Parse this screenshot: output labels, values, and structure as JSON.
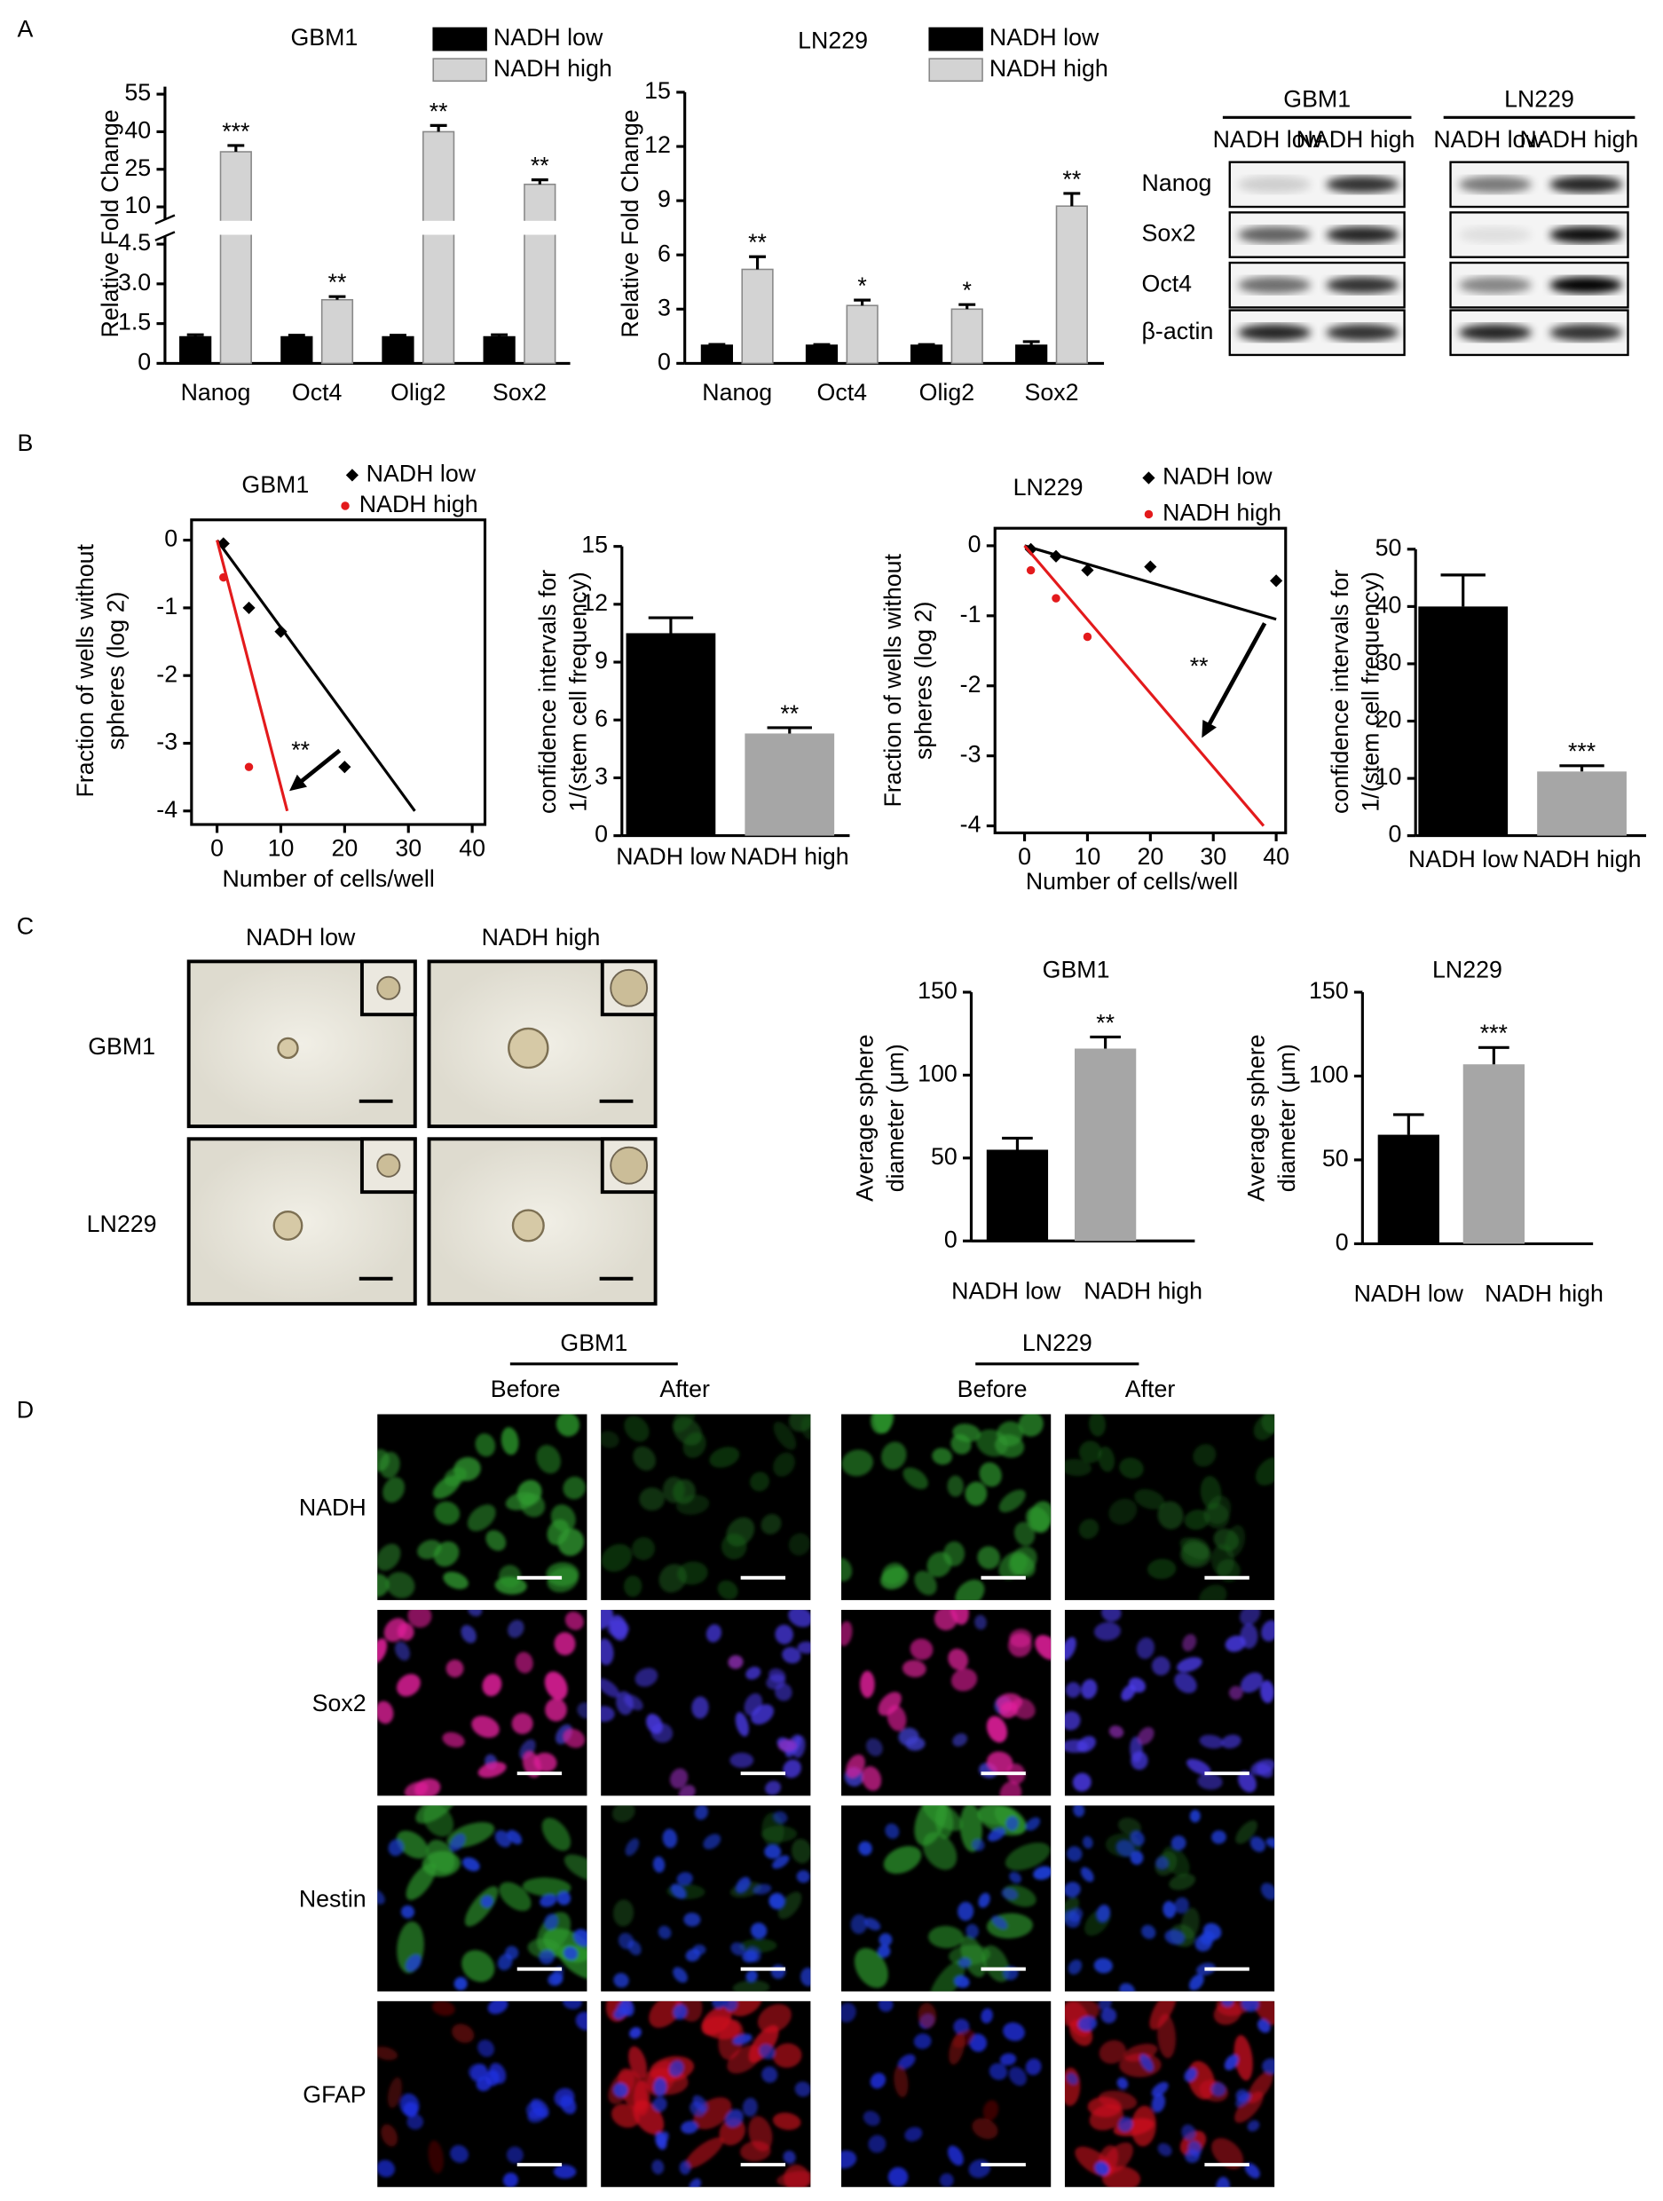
{
  "panel_labels": [
    "A",
    "B",
    "C",
    "D"
  ],
  "chart_data": [
    {
      "type": "bar",
      "title": "GBM1",
      "y_label": "Relative Fold Change",
      "categories": [
        "Nanog",
        "Oct4",
        "Olig2",
        "Sox2"
      ],
      "series": [
        {
          "name": "NADH low",
          "color": "#000000",
          "values": [
            1,
            1,
            1,
            1
          ],
          "errors": [
            0.08,
            0.06,
            0.06,
            0.08
          ]
        },
        {
          "name": "NADH high",
          "color": "#d3d3d3",
          "values": [
            32,
            2.4,
            40,
            19
          ],
          "errors": [
            2.5,
            0.12,
            2.5,
            1.8
          ],
          "annotations": [
            "***",
            "**",
            "**",
            "**"
          ]
        }
      ],
      "axis_segments": [
        {
          "ylim": [
            0,
            4.8
          ],
          "yticks": [
            0,
            1.5,
            {
              "value": 3,
              "label": "3.0"
            },
            4.5
          ]
        },
        {
          "ylim": [
            5,
            58
          ],
          "yticks": [
            10,
            25,
            40,
            55
          ]
        }
      ]
    },
    {
      "type": "bar",
      "title": "LN229",
      "y_label": "Relative Fold Change",
      "categories": [
        "Nanog",
        "Oct4",
        "Olig2",
        "Sox2"
      ],
      "series": [
        {
          "name": "NADH low",
          "color": "#000000",
          "values": [
            1,
            1,
            1,
            1
          ],
          "errors": [
            0.05,
            0.04,
            0.04,
            0.2
          ]
        },
        {
          "name": "NADH high",
          "color": "#d3d3d3",
          "values": [
            5.2,
            3.2,
            3.0,
            8.7
          ],
          "errors": [
            0.7,
            0.3,
            0.25,
            0.7
          ],
          "annotations": [
            "**",
            "*",
            "*",
            "**"
          ]
        }
      ],
      "ylim": [
        0,
        15
      ],
      "yticks": [
        0,
        3,
        6,
        9,
        12,
        15
      ]
    },
    {
      "type": "scatter",
      "title": "GBM1",
      "x_label": "Number of cells/well",
      "y_label": [
        "Fraction of wells without",
        "spheres (log 2)"
      ],
      "xlim": [
        -4,
        42
      ],
      "xticks": [
        0,
        10,
        20,
        30,
        40
      ],
      "ylim": [
        -4.2,
        0.3
      ],
      "yticks": [
        0,
        -1,
        -2,
        -3,
        -4
      ],
      "series": [
        {
          "name": "NADH low",
          "color": "#000000",
          "marker": "diamond",
          "x": [
            1,
            5,
            10,
            20
          ],
          "y": [
            -0.05,
            -1.0,
            -1.35,
            -3.35
          ],
          "fit_x": [
            0,
            31
          ],
          "fit_y": [
            0,
            -4
          ]
        },
        {
          "name": "NADH high",
          "color": "#e31a1c",
          "marker": "circle",
          "x": [
            1,
            5
          ],
          "y": [
            -0.55,
            -3.35
          ],
          "fit_x": [
            0,
            11
          ],
          "fit_y": [
            0,
            -4
          ]
        }
      ],
      "annotation": "**"
    },
    {
      "type": "bar",
      "y_label": [
        "confidence intervals for",
        "1/(stem cell frequency)"
      ],
      "categories": [
        "NADH low",
        "NADH high"
      ],
      "values": [
        10.5,
        5.3
      ],
      "errors": [
        0.8,
        0.3
      ],
      "colors": [
        "#000000",
        "#a6a6a6"
      ],
      "annotations": [
        null,
        "**"
      ],
      "ylim": [
        0,
        15
      ],
      "yticks": [
        0,
        3,
        6,
        9,
        12,
        15
      ]
    },
    {
      "type": "scatter",
      "title": "LN229",
      "x_label": "Number of cells/well",
      "y_label": [
        "Fraction of wells without",
        "spheres (log 2)"
      ],
      "xlim": [
        -4.7,
        41.5
      ],
      "xticks": [
        0,
        10,
        20,
        30,
        40
      ],
      "ylim": [
        -4.1,
        0.25
      ],
      "yticks": [
        0,
        -1,
        -2,
        -3,
        -4
      ],
      "series": [
        {
          "name": "NADH low",
          "color": "#000000",
          "marker": "diamond",
          "x": [
            1,
            5,
            10,
            20,
            40
          ],
          "y": [
            -0.05,
            -0.15,
            -0.35,
            -0.3,
            -0.5
          ],
          "fit_x": [
            0,
            40
          ],
          "fit_y": [
            0,
            -1.05
          ]
        },
        {
          "name": "NADH high",
          "color": "#e31a1c",
          "marker": "circle",
          "x": [
            1,
            5,
            10
          ],
          "y": [
            -0.35,
            -0.75,
            -1.3
          ],
          "fit_x": [
            0,
            38
          ],
          "fit_y": [
            0,
            -4
          ]
        }
      ],
      "annotation": "**"
    },
    {
      "type": "bar",
      "y_label": [
        "confidence intervals for",
        "1/(stem cell frequency)"
      ],
      "categories": [
        "NADH low",
        "NADH high"
      ],
      "values": [
        40,
        11.2
      ],
      "errors": [
        5.5,
        1
      ],
      "colors": [
        "#000000",
        "#a6a6a6"
      ],
      "annotations": [
        null,
        "***"
      ],
      "ylim": [
        0,
        50
      ],
      "yticks": [
        0,
        10,
        20,
        30,
        40,
        50
      ]
    },
    {
      "type": "bar",
      "title": "GBM1",
      "y_label": [
        "Average sphere",
        "diameter (μm)"
      ],
      "categories": [
        "NADH low",
        "NADH high"
      ],
      "values": [
        55,
        116
      ],
      "errors": [
        7,
        7
      ],
      "colors": [
        "#000000",
        "#a6a6a6"
      ],
      "annotations": [
        null,
        "**"
      ],
      "ylim": [
        0,
        150
      ],
      "yticks": [
        0,
        50,
        100,
        150
      ]
    },
    {
      "type": "bar",
      "title": "LN229",
      "y_label": [
        "Average sphere",
        "diameter (μm)"
      ],
      "categories": [
        "NADH low",
        "NADH high"
      ],
      "values": [
        65,
        107
      ],
      "errors": [
        12,
        10
      ],
      "colors": [
        "#000000",
        "#a6a6a6"
      ],
      "annotations": [
        null,
        "***"
      ],
      "ylim": [
        0,
        150
      ],
      "yticks": [
        0,
        50,
        100,
        150
      ]
    }
  ],
  "western_blot": {
    "groups": [
      {
        "title": "GBM1",
        "columns": [
          "NADH low",
          "NADH high"
        ]
      },
      {
        "title": "LN229",
        "columns": [
          "NADH low",
          "NADH high"
        ]
      }
    ],
    "rows": [
      "Nanog",
      "Sox2",
      "Oct4",
      "β-actin"
    ]
  },
  "sphere_images": {
    "columns": [
      "NADH low",
      "NADH high"
    ],
    "rows": [
      "GBM1",
      "LN229"
    ]
  },
  "immunofluorescence": {
    "groups": [
      {
        "title": "GBM1",
        "columns": [
          "Before",
          "After"
        ]
      },
      {
        "title": "LN229",
        "columns": [
          "Before",
          "After"
        ]
      }
    ],
    "rows": [
      "NADH",
      "Sox2",
      "Nestin",
      "GFAP"
    ]
  }
}
